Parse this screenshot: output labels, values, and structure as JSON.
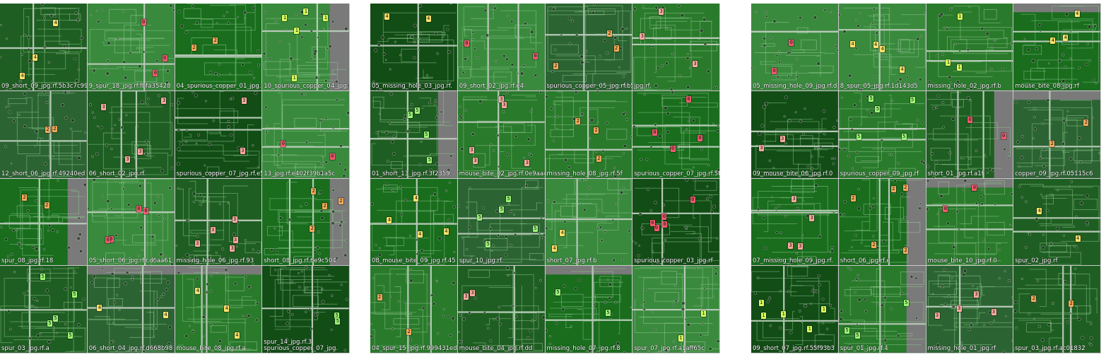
{
  "colors": {
    "class_0": "#f05a6e",
    "class_1": "#d8ff5a",
    "class_2": "#f4a85a",
    "class_3": "#ffaaa0",
    "class_4": "#fce26a",
    "class_5": "#9cf575",
    "board_greens": [
      "#1f5e22",
      "#2a7a2c",
      "#196d1d",
      "#2b6432",
      "#3a8a3e",
      "#124d16",
      "#267a2a"
    ]
  },
  "mosaics": [
    {
      "captions": [
        "09_short_09_jpg.rf.5b3c7c99c",
        "9_spur_18_jpg.rf.fbfa35428",
        "04_spurious_copper_01_jpg.rf.d",
        "10_spurious_copper_04_jpg.rf.de",
        "12_short_06_jpg.rf.49240ed",
        "06_short_02_jpg.rf.",
        "spurious_copper_07_jpg.rf.e5c",
        "13_jpg.rf.e402f39b1a5c",
        "spur_08_jpg.rf.18",
        "05_short_06_jpg.rf.cd6aa61",
        "missing_hole_06_jpg.rf.93",
        "short_08_jpg.rf.6e9c504",
        "spur_03_jpg.rf.a",
        "06_short_04_jpg.rf.d668b98",
        "mouse_bite_08_jpg.rf.a",
        "spurious_copper_07_jpg.",
        "spur_14_jpg.rf.3"
      ],
      "labels": [
        [
          "1",
          4,
          16
        ],
        [
          "2",
          12,
          13
        ],
        [
          "4",
          15,
          8
        ],
        [
          "2",
          9,
          2
        ],
        [
          "0",
          8,
          3
        ],
        [
          "0",
          10,
          11
        ],
        [
          "3",
          11,
          14
        ],
        [
          "2",
          5,
          6
        ],
        [
          "0",
          2,
          9
        ],
        [
          "4",
          14,
          1
        ],
        [
          "3",
          6,
          12
        ],
        [
          "5",
          13,
          15
        ],
        [
          "2",
          3,
          7
        ],
        [
          "4",
          1,
          10
        ],
        [
          "3",
          7,
          5
        ],
        [
          "5",
          16,
          4
        ]
      ]
    },
    {
      "captions": [
        "05_missing_hole_03_jpg.rf.",
        "09_short_02_jpg.rf.e4",
        "spurious_copper_05_jpg.rf.b5",
        "jpg.rf.",
        "01_short_13_jpg.rf.3f2359",
        "mouse_bite_02_jpg.rf.0e9aa4d",
        "missing_hole_08_jpg.rf.5f",
        "spurious_copper_07_jpg.rf.5f",
        "08_mouse_bite_09_jpg.rf.45",
        "spur_10_jpg.rf.",
        "short_07_jpg.rf.b",
        "spurious_copper_03_jpg.rf",
        "04_spur_15_jpg.rf.999431ed",
        "mouse_bite_04_jpg.rf.dd",
        "missing_hole_07_jpg.rf.8",
        "spur_07_jpg.rf.a1aff65c"
      ],
      "labels": [
        [
          "0",
          2,
          5
        ],
        [
          "2",
          3,
          9
        ],
        [
          "3",
          6,
          14
        ],
        [
          "4",
          11,
          1
        ],
        [
          "5",
          15,
          7
        ],
        [
          "0",
          8,
          12
        ],
        [
          "2",
          13,
          3
        ],
        [
          "3",
          4,
          10
        ],
        [
          "5",
          10,
          16
        ],
        [
          "4",
          1,
          6
        ],
        [
          "1",
          16,
          2
        ],
        [
          "2",
          7,
          8
        ],
        [
          "0",
          12,
          15
        ],
        [
          "3",
          14,
          4
        ],
        [
          "5",
          5,
          11
        ],
        [
          "4",
          9,
          13
        ]
      ]
    },
    {
      "captions": [
        "05_missing_hole_09_jpg.rf.d",
        "8_spur_05_jpg.rf.1d143d5",
        "missing_hole_02_jpg.rf.b",
        "mouse_bite_08_jpg.rf",
        "09_mouse_bite_06_jpg.rf.0",
        "spurious_copper_09_jpg.rf",
        "short_01_jpg.rf.a1f",
        "copper_09_jpg.rf.05115c6",
        "07_missing_hole_09_jpg.rf.",
        "short_06_jpg.rf.e",
        "mouse_bite_10_jpg.rf.0",
        "spur_02_jpg.rf",
        "09_short_07_jpg.rf.55f93b3",
        "spur_01_jpg.rf.4",
        "missing_hole_01_jpg.rf",
        "spur_03_jpg.rf.ac01832"
      ],
      "labels": [
        [
          "0",
          1,
          3
        ],
        [
          "4",
          2,
          11
        ],
        [
          "3",
          5,
          7
        ],
        [
          "5",
          6,
          16
        ],
        [
          "1",
          3,
          8
        ],
        [
          "2",
          10,
          14
        ],
        [
          "0",
          7,
          1
        ],
        [
          "4",
          12,
          5
        ],
        [
          "3",
          9,
          12
        ],
        [
          "5",
          14,
          9
        ],
        [
          "2",
          16,
          2
        ],
        [
          "1",
          13,
          15
        ],
        [
          "0",
          11,
          6
        ],
        [
          "3",
          15,
          13
        ],
        [
          "4",
          4,
          10
        ],
        [
          "2",
          8,
          4
        ]
      ]
    }
  ]
}
